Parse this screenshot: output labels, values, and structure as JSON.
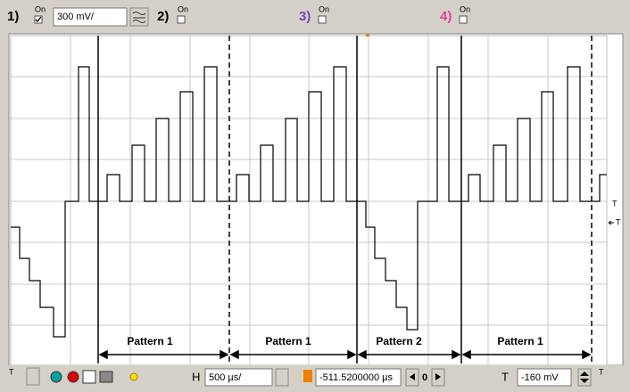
{
  "toolbar": {
    "channels": [
      {
        "number": "1)",
        "on": "On",
        "scale": "300 mV/",
        "color": "#000000"
      },
      {
        "number": "2)",
        "on": "On",
        "color": "#000000"
      },
      {
        "number": "3)",
        "on": "On",
        "color": "#8040c0"
      },
      {
        "number": "4)",
        "on": "On",
        "color": "#e040a0"
      }
    ]
  },
  "screen": {
    "annotations": [
      "Pattern 1",
      "Pattern 1",
      "Pattern 2",
      "Pattern 1"
    ],
    "ground_marker": "T",
    "trigger_marker": "T"
  },
  "controls": {
    "left_marker": "T",
    "h_label": "H",
    "timebase": "500 µs/",
    "position": "-511.5200000 µs",
    "step": "0",
    "t_label": "T",
    "trigger_level": "-160 mV",
    "right_marker": "T"
  }
}
